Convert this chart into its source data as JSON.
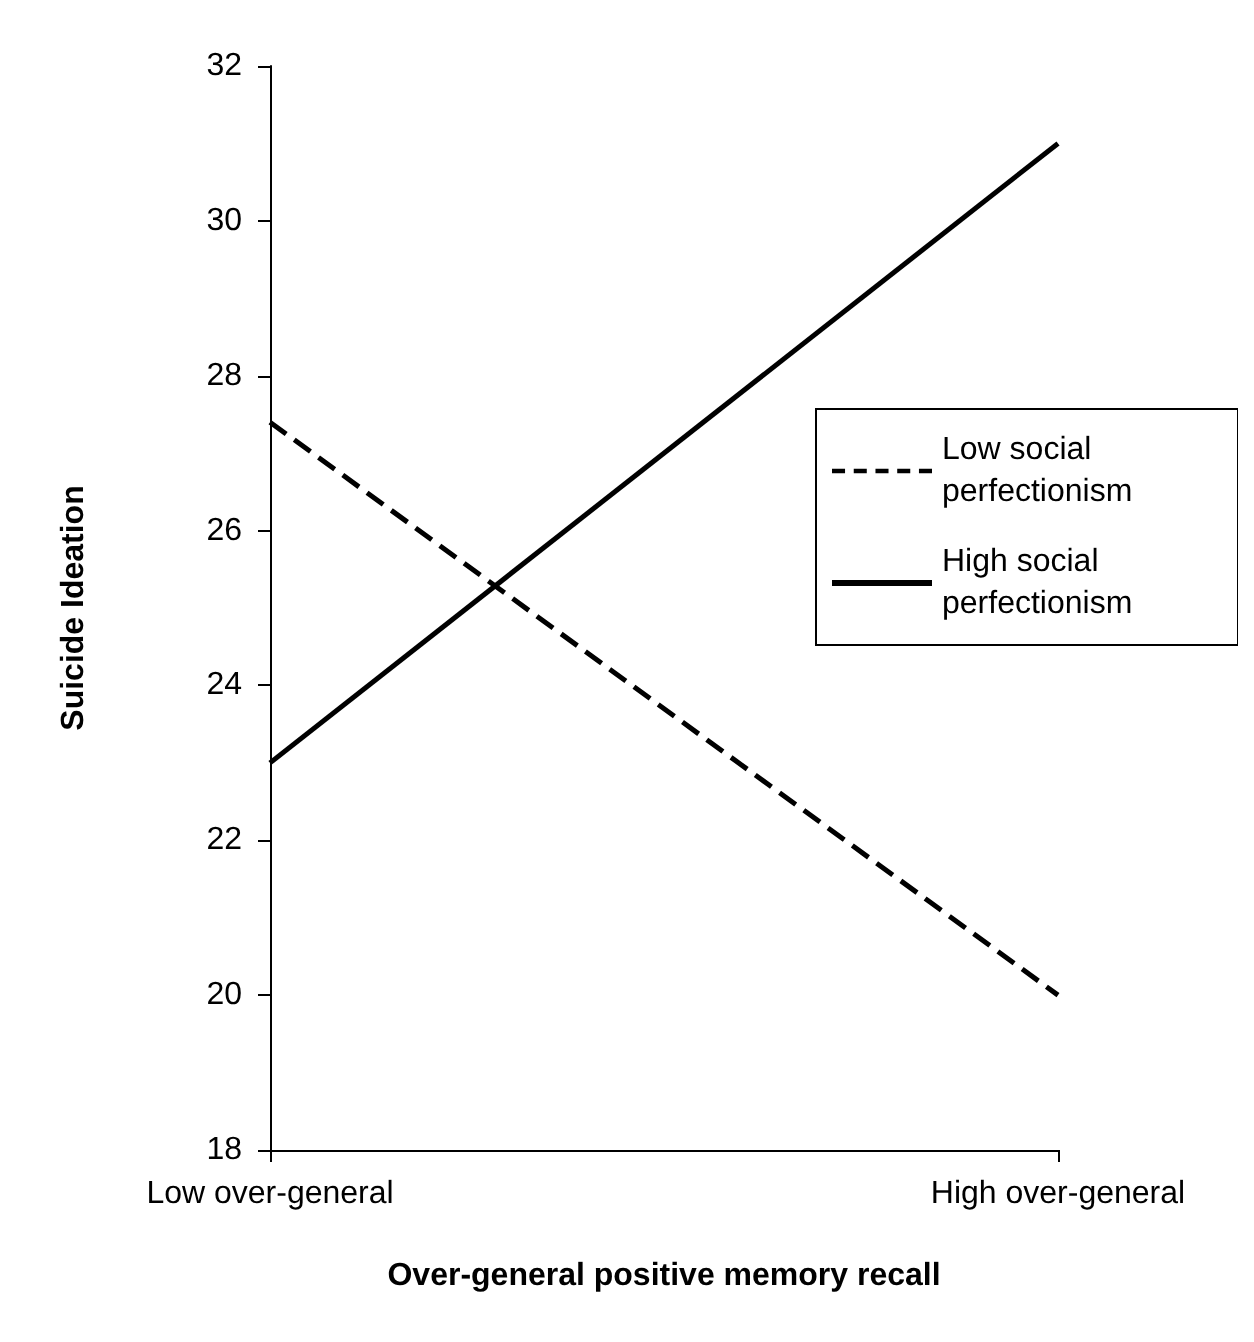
{
  "chart_data": {
    "type": "line",
    "xlabel": "Over-general positive memory recall",
    "ylabel": "Suicide Ideation",
    "categories": [
      "Low over-general",
      "High over-general"
    ],
    "series": [
      {
        "name": "Low social perfectionism",
        "color": "#000000",
        "line_style": "dashed",
        "values": [
          27.4,
          20.0
        ]
      },
      {
        "name": "High social perfectionism",
        "color": "#000000",
        "line_style": "solid",
        "values": [
          23.0,
          31.0
        ]
      }
    ],
    "ylim": [
      18,
      32
    ],
    "yticks": [
      18,
      20,
      22,
      24,
      26,
      28,
      30,
      32
    ],
    "grid": false,
    "legend": "right",
    "marker": "none"
  }
}
